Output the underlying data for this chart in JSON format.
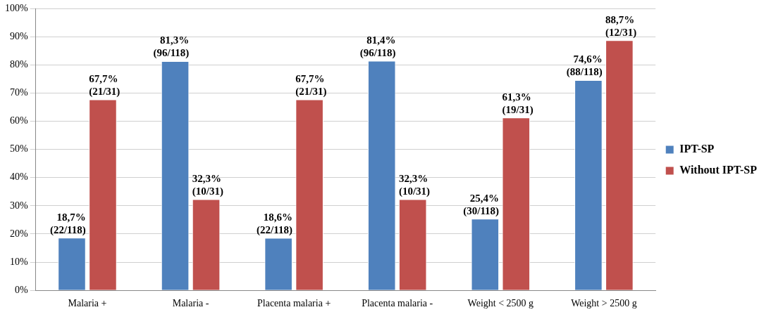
{
  "chart_data": {
    "type": "bar",
    "categories": [
      "Malaria +",
      "Malaria -",
      "Placenta malaria +",
      "Placenta malaria -",
      "Weight < 2500 g",
      "Weight > 2500 g"
    ],
    "series": [
      {
        "name": "IPT-SP",
        "color": "#4f81bd",
        "values": [
          18.7,
          81.3,
          18.6,
          81.4,
          25.4,
          74.6
        ],
        "value_labels": [
          "18,7% (22/118)",
          "81,3% (96/118)",
          "18,6% (22/118)",
          "81,4% (96/118)",
          "25,4% (30/118)",
          "74,6% (88/118)"
        ]
      },
      {
        "name": "Without IPT-SP",
        "color": "#c0504d",
        "values": [
          67.7,
          32.3,
          67.7,
          32.3,
          61.3,
          88.7
        ],
        "value_labels": [
          "67,7% (21/31)",
          "32,3% (10/31)",
          "67,7% (21/31)",
          "32,3% (10/31)",
          "61,3% (19/31)",
          "88,7% (12/31)"
        ]
      }
    ],
    "ylim": [
      0,
      100
    ],
    "yticks": [
      {
        "value": 0,
        "label": "0%"
      },
      {
        "value": 10,
        "label": "10%"
      },
      {
        "value": 20,
        "label": "20%"
      },
      {
        "value": 30,
        "label": "30%"
      },
      {
        "value": 40,
        "label": "40%"
      },
      {
        "value": 50,
        "label": "50%"
      },
      {
        "value": 60,
        "label": "60%"
      },
      {
        "value": 70,
        "label": "70%"
      },
      {
        "value": 80,
        "label": "80%"
      },
      {
        "value": 90,
        "label": "90%"
      },
      {
        "value": 100,
        "label": "100%"
      }
    ],
    "grid": "y",
    "legend": "right"
  }
}
